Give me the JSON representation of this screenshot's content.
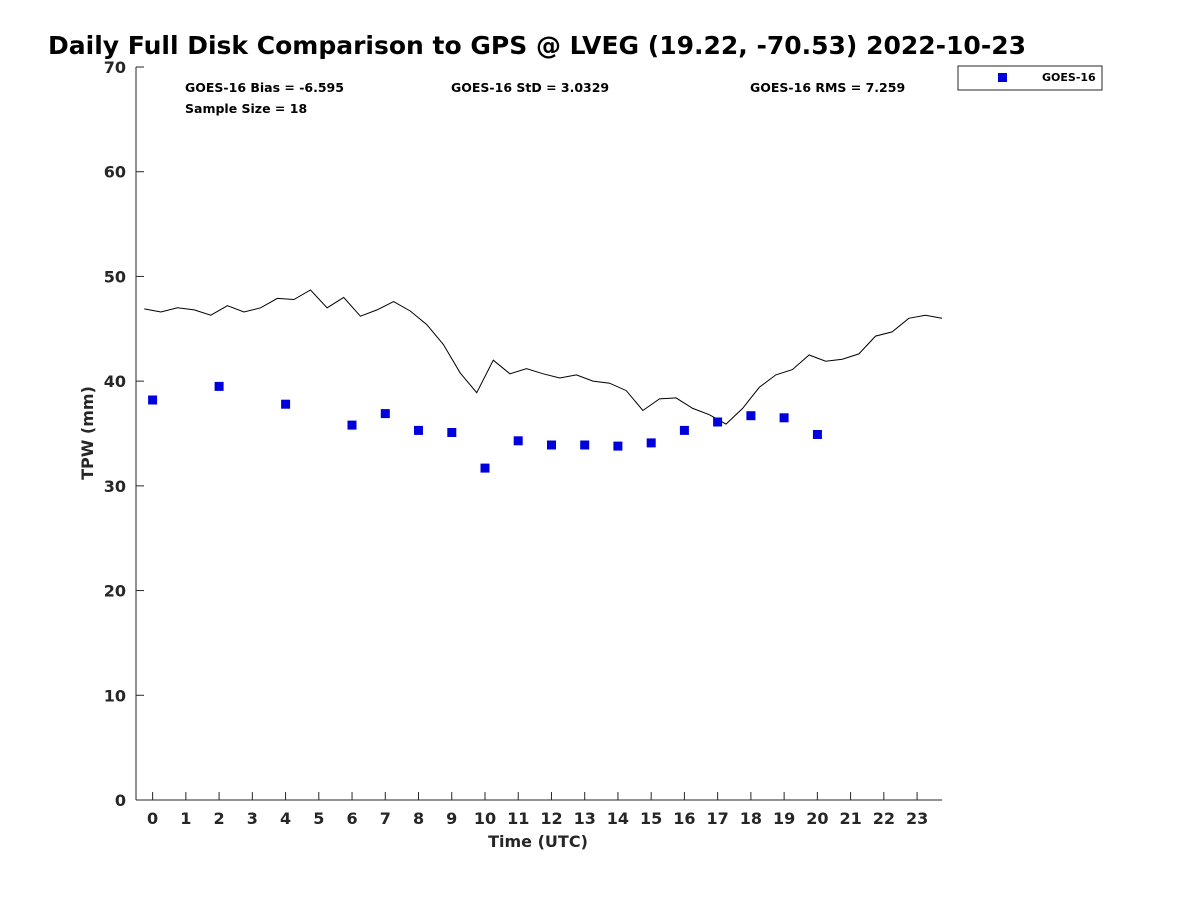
{
  "chart_data": {
    "type": "scatter",
    "title": "Daily Full Disk Comparison to GPS @ LVEG (19.22, -70.53) 2022-10-23",
    "xlabel": "Time (UTC)",
    "ylabel": "TPW (mm)",
    "xlim": [
      -0.5,
      23.75
    ],
    "ylim": [
      0,
      70
    ],
    "x_ticks": [
      0,
      1,
      2,
      3,
      4,
      5,
      6,
      7,
      8,
      9,
      10,
      11,
      12,
      13,
      14,
      15,
      16,
      17,
      18,
      19,
      20,
      21,
      22,
      23
    ],
    "y_ticks": [
      0,
      10,
      20,
      30,
      40,
      50,
      60,
      70
    ],
    "x_tick_labels": [
      "0",
      "1",
      "2",
      "3",
      "4",
      "5",
      "6",
      "7",
      "8",
      "9",
      "10",
      "11",
      "12",
      "13",
      "14",
      "15",
      "16",
      "17",
      "18",
      "19",
      "20",
      "21",
      "22",
      "23"
    ],
    "y_tick_labels": [
      "0",
      "10",
      "20",
      "30",
      "40",
      "50",
      "60",
      "70"
    ],
    "grid": false,
    "legend_position": "top-right-outside",
    "stats": {
      "bias": "GOES-16 Bias = -6.595",
      "std": "GOES-16 StD = 3.0329",
      "rms": "GOES-16 RMS = 7.259",
      "sample_size": "Sample Size = 18"
    },
    "series": [
      {
        "name": "GOES-16",
        "kind": "scatter",
        "marker": "square",
        "color": "#0000dd",
        "x": [
          0,
          2,
          4,
          6,
          7,
          8,
          9,
          10,
          11,
          12,
          13,
          14,
          15,
          16,
          17,
          18,
          19,
          20
        ],
        "values": [
          38.2,
          39.5,
          37.8,
          35.8,
          36.9,
          35.3,
          35.1,
          31.7,
          34.3,
          33.9,
          33.9,
          33.8,
          34.1,
          35.3,
          36.1,
          36.7,
          36.5,
          34.9
        ]
      },
      {
        "kind": "line",
        "color": "#000000",
        "x": [
          -0.25,
          0.25,
          0.75,
          1.25,
          1.75,
          2.25,
          2.75,
          3.25,
          3.75,
          4.25,
          4.75,
          5.25,
          5.75,
          6.25,
          6.75,
          7.25,
          7.75,
          8.25,
          8.75,
          9.25,
          9.75,
          10.25,
          10.75,
          11.25,
          11.75,
          12.25,
          12.75,
          13.25,
          13.75,
          14.25,
          14.75,
          15.25,
          15.75,
          16.25,
          16.75,
          17.25,
          17.75,
          18.25,
          18.75,
          19.25,
          19.75,
          20.25,
          20.75,
          21.25,
          21.75,
          22.25,
          22.75,
          23.25,
          23.75
        ],
        "values": [
          46.9,
          46.6,
          47.0,
          46.8,
          46.3,
          47.2,
          46.6,
          47.0,
          47.9,
          47.8,
          48.7,
          47.0,
          48.0,
          46.2,
          46.8,
          47.6,
          46.7,
          45.4,
          43.5,
          40.8,
          38.9,
          42.0,
          40.7,
          41.2,
          40.7,
          40.3,
          40.6,
          40.0,
          39.8,
          39.1,
          37.2,
          38.3,
          38.4,
          37.4,
          36.8,
          35.9,
          37.4,
          39.4,
          40.6,
          41.1,
          42.5,
          41.9,
          42.1,
          42.6,
          44.3,
          44.7,
          46.0,
          46.3,
          46.0
        ]
      }
    ]
  }
}
